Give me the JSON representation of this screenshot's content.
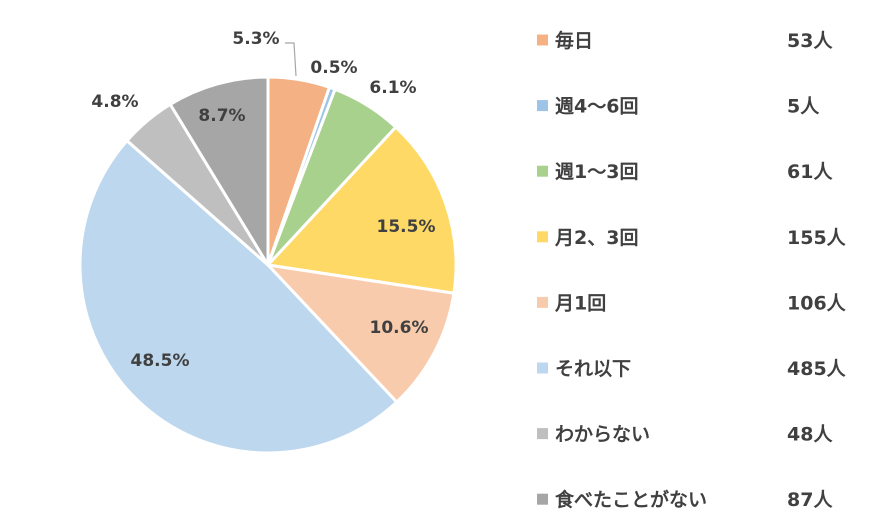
{
  "chart_data": {
    "type": "pie",
    "start_angle": "12 o'clock, clockwise",
    "legend_position": "right",
    "slices": [
      {
        "label": "毎日",
        "percent": 5.3,
        "count": 53,
        "count_label": "53人",
        "percent_label": "5.3%",
        "color": "#F4B183"
      },
      {
        "label": "週4～6回",
        "percent": 0.5,
        "count": 5,
        "count_label": "5人",
        "percent_label": "0.5%",
        "color": "#9DC3E6"
      },
      {
        "label": "週1～3回",
        "percent": 6.1,
        "count": 61,
        "count_label": "61人",
        "percent_label": "6.1%",
        "color": "#A9D18E"
      },
      {
        "label": "月2、3回",
        "percent": 15.5,
        "count": 155,
        "count_label": "155人",
        "percent_label": "15.5%",
        "color": "#FFD966"
      },
      {
        "label": "月1回",
        "percent": 10.6,
        "count": 106,
        "count_label": "106人",
        "percent_label": "10.6%",
        "color": "#F8CBAD"
      },
      {
        "label": "それ以下",
        "percent": 48.5,
        "count": 485,
        "count_label": "485人",
        "percent_label": "48.5%",
        "color": "#BDD7EE"
      },
      {
        "label": "わからない",
        "percent": 4.8,
        "count": 48,
        "count_label": "48人",
        "percent_label": "4.8%",
        "color": "#BFBFBF"
      },
      {
        "label": "食べたことがない",
        "percent": 8.7,
        "count": 87,
        "count_label": "87人",
        "percent_label": "8.7%",
        "color": "#A6A6A6"
      }
    ]
  }
}
